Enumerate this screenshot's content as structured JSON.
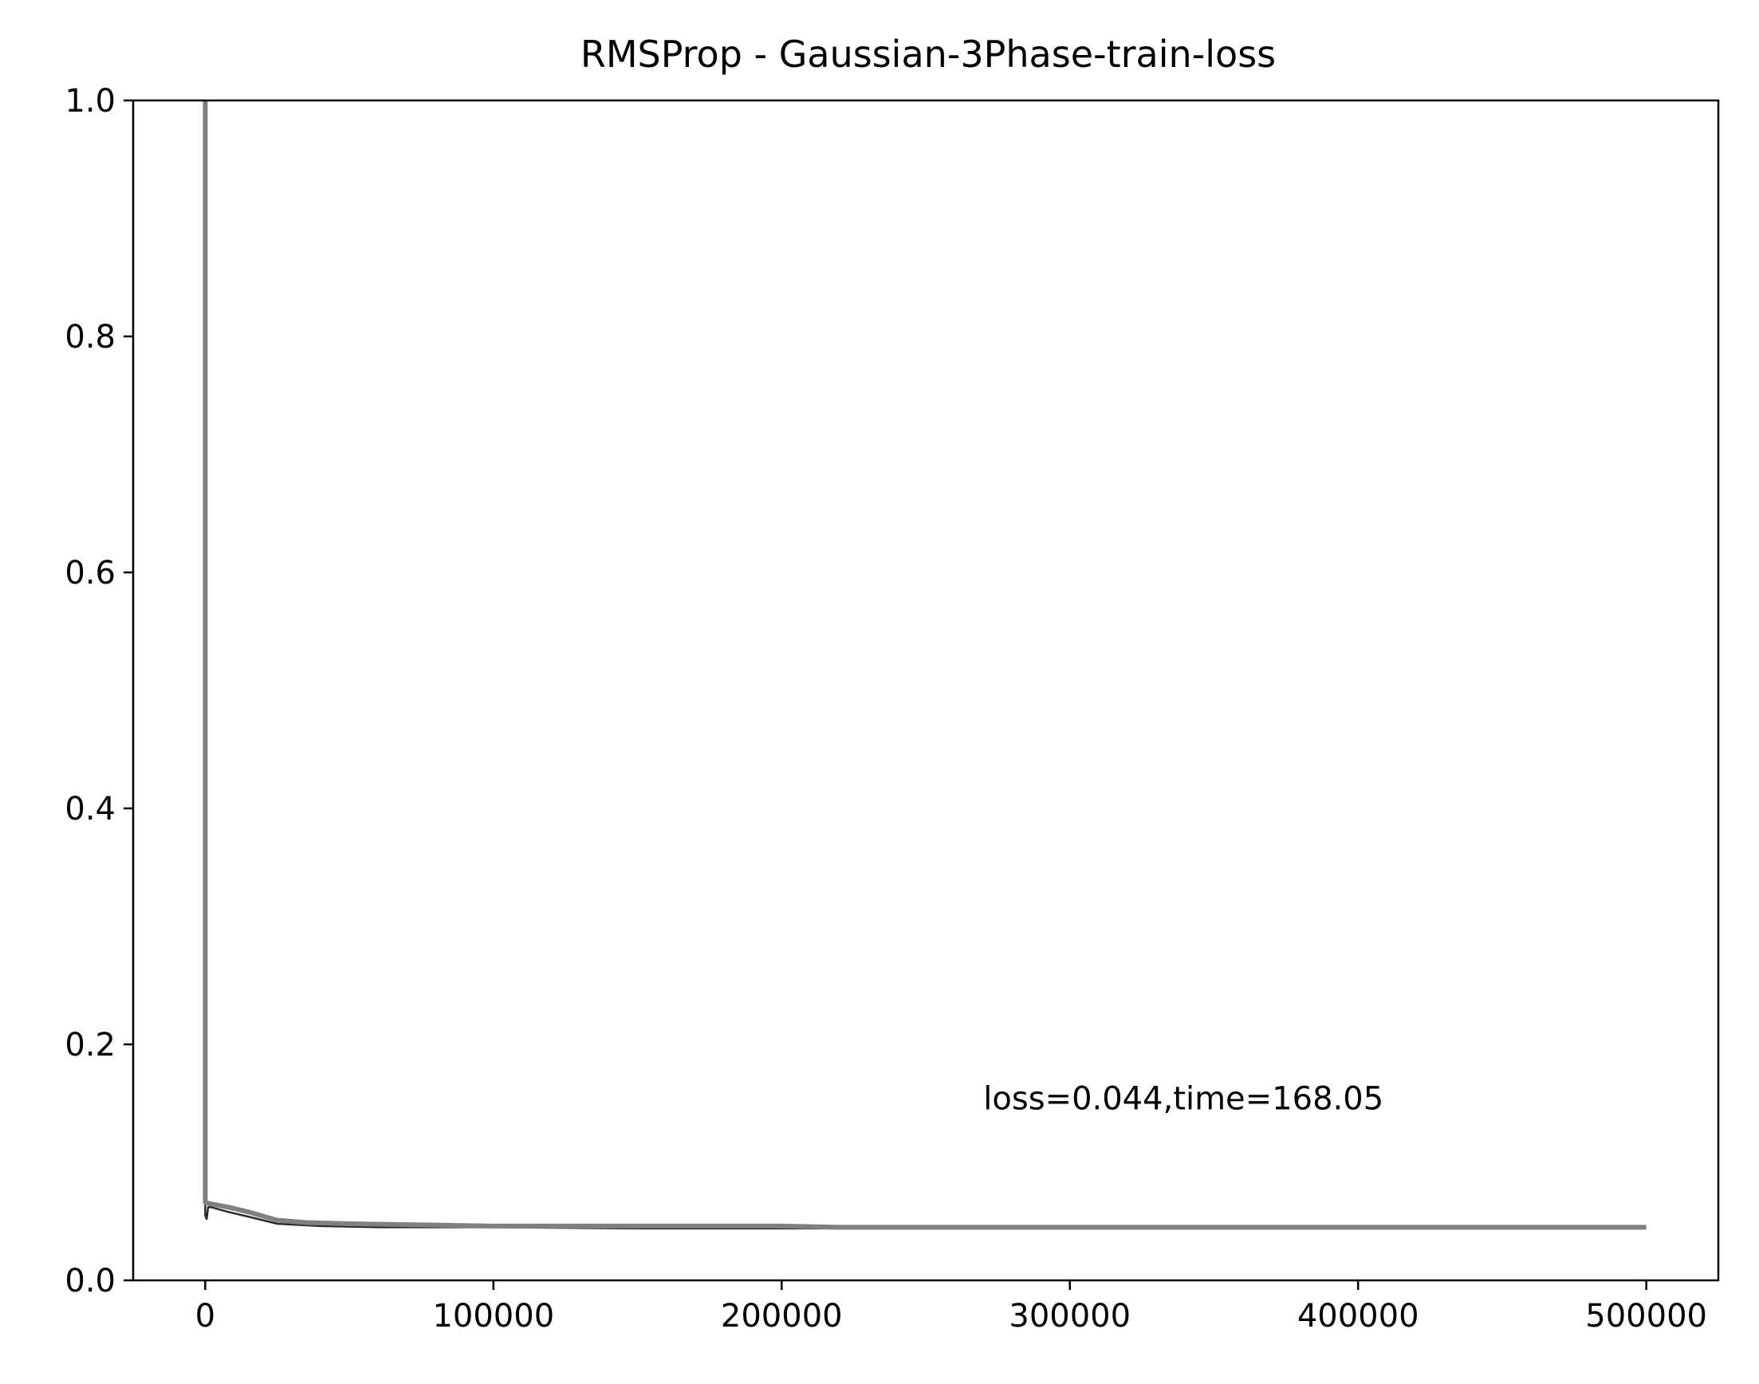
{
  "chart_data": {
    "type": "line",
    "title": "RMSProp - Gaussian-3Phase-train-loss",
    "xlabel": "",
    "ylabel": "",
    "xlim": [
      -25000,
      525000
    ],
    "ylim": [
      0,
      1.0
    ],
    "xticks": [
      0,
      100000,
      200000,
      300000,
      400000,
      500000
    ],
    "xtick_labels": [
      "0",
      "100000",
      "200000",
      "300000",
      "400000",
      "500000"
    ],
    "yticks": [
      0,
      0.2,
      0.4,
      0.6,
      0.8,
      1.0
    ],
    "ytick_labels": [
      "0.0",
      "0.2",
      "0.4",
      "0.6",
      "0.8",
      "1.0"
    ],
    "grid": false,
    "annotation": {
      "text": "loss=0.044,time=168.05",
      "x": 270000,
      "y": 0.145
    },
    "series": [
      {
        "color": "#2b2b2b",
        "width": 2.5,
        "x": [
          0,
          0,
          500,
          1000,
          2000,
          8000,
          15000,
          25000,
          40000,
          60000,
          100000,
          150000,
          200000,
          250000,
          300000,
          350000,
          400000,
          450000,
          500000
        ],
        "y": [
          1.0,
          0.055,
          0.052,
          0.062,
          0.062,
          0.058,
          0.054,
          0.048,
          0.046,
          0.045,
          0.045,
          0.044,
          0.044,
          0.044,
          0.044,
          0.044,
          0.044,
          0.044,
          0.044
        ]
      },
      {
        "color": "#808080",
        "width": 6,
        "x": [
          0,
          0,
          1500,
          8000,
          15000,
          25000,
          35000,
          50000,
          75000,
          100000,
          150000,
          200000,
          220000,
          250000,
          300000,
          350000,
          400000,
          450000,
          500000
        ],
        "y": [
          1.0,
          0.066,
          0.065,
          0.062,
          0.058,
          0.051,
          0.049,
          0.048,
          0.047,
          0.046,
          0.046,
          0.046,
          0.045,
          0.045,
          0.045,
          0.045,
          0.045,
          0.045,
          0.045
        ]
      }
    ]
  }
}
